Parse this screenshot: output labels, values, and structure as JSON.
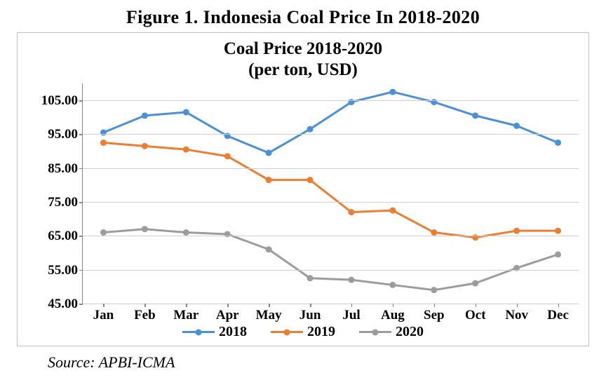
{
  "figure_caption": "Figure 1. Indonesia Coal Price In 2018-2020",
  "source_line": "Source: APBI-ICMA",
  "chart": {
    "type": "line",
    "title_line1": "Coal Price 2018-2020",
    "title_line2": "(per ton, USD)",
    "categories": [
      "Jan",
      "Feb",
      "Mar",
      "Apr",
      "May",
      "Jun",
      "Jul",
      "Aug",
      "Sep",
      "Oct",
      "Nov",
      "Dec"
    ],
    "y_axis": {
      "min": 45.0,
      "max": 110.0,
      "ticks": [
        105.0,
        95.0,
        85.0,
        75.0,
        65.0,
        55.0,
        45.0
      ],
      "tick_labels": [
        "105.00",
        "95.00",
        "85.00",
        "75.00",
        "65.00",
        "55.00",
        "45.00"
      ],
      "grid_color": "#cfcfcf"
    },
    "background_color": "#ffffff",
    "border_color": "#bfbfbf",
    "axis_color": "#888888",
    "line_width": 3,
    "marker_radius": 4.5,
    "series": [
      {
        "name": "2018",
        "color": "#4a90d9",
        "values": [
          95.5,
          100.5,
          101.5,
          94.5,
          89.5,
          96.5,
          104.5,
          107.5,
          104.5,
          100.5,
          97.5,
          92.5
        ]
      },
      {
        "name": "2019",
        "color": "#ed7d31",
        "values": [
          92.5,
          91.5,
          90.5,
          88.5,
          81.5,
          81.5,
          72.0,
          72.5,
          66.0,
          64.5,
          66.5,
          66.5
        ]
      },
      {
        "name": "2020",
        "color": "#9c9c9c",
        "values": [
          66.0,
          67.0,
          66.0,
          65.5,
          61.0,
          52.5,
          52.0,
          50.5,
          49.0,
          51.0,
          55.5,
          59.5
        ]
      }
    ],
    "legend_labels": [
      "2018",
      "2019",
      "2020"
    ],
    "label_font_size": 19,
    "title_font_size": 25
  }
}
